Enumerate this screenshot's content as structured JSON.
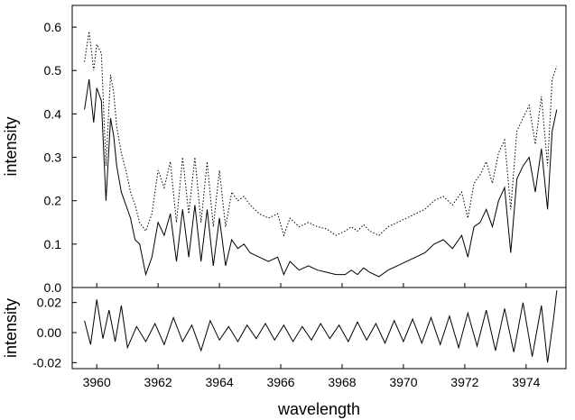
{
  "chart_data": [
    {
      "type": "line",
      "panel": "top",
      "xlabel": "",
      "ylabel": "intensity",
      "xlim": [
        3959.2,
        3975.3
      ],
      "ylim": [
        0.0,
        0.65
      ],
      "y_ticks": [
        "0.0",
        "0.1",
        "0.2",
        "0.3",
        "0.4",
        "0.5",
        "0.6"
      ],
      "x_ticks": [
        "3960",
        "3962",
        "3964",
        "3966",
        "3968",
        "3970",
        "3972",
        "3974"
      ],
      "grid": false,
      "legend": "none",
      "series": [
        {
          "style": "solid",
          "color": "#000000",
          "x": [
            3959.6,
            3959.75,
            3959.9,
            3960.0,
            3960.15,
            3960.3,
            3960.45,
            3960.55,
            3960.65,
            3960.8,
            3960.95,
            3961.1,
            3961.25,
            3961.4,
            3961.6,
            3961.8,
            3962.0,
            3962.2,
            3962.4,
            3962.6,
            3962.8,
            3963.0,
            3963.2,
            3963.4,
            3963.6,
            3963.8,
            3964.0,
            3964.2,
            3964.4,
            3964.6,
            3964.8,
            3965.0,
            3965.3,
            3965.6,
            3965.9,
            3966.1,
            3966.3,
            3966.6,
            3966.9,
            3967.2,
            3967.5,
            3967.8,
            3968.1,
            3968.3,
            3968.5,
            3968.7,
            3968.9,
            3969.2,
            3969.5,
            3969.8,
            3970.1,
            3970.4,
            3970.7,
            3971.0,
            3971.3,
            3971.6,
            3971.9,
            3972.1,
            3972.3,
            3972.5,
            3972.7,
            3972.9,
            3973.1,
            3973.3,
            3973.5,
            3973.7,
            3973.9,
            3974.1,
            3974.3,
            3974.5,
            3974.7,
            3974.85,
            3975.0
          ],
          "values": [
            0.41,
            0.48,
            0.38,
            0.46,
            0.43,
            0.2,
            0.39,
            0.35,
            0.28,
            0.22,
            0.19,
            0.16,
            0.11,
            0.1,
            0.03,
            0.07,
            0.15,
            0.12,
            0.17,
            0.06,
            0.18,
            0.07,
            0.19,
            0.06,
            0.18,
            0.05,
            0.16,
            0.05,
            0.11,
            0.09,
            0.1,
            0.08,
            0.07,
            0.06,
            0.07,
            0.03,
            0.06,
            0.04,
            0.05,
            0.04,
            0.035,
            0.03,
            0.03,
            0.04,
            0.03,
            0.045,
            0.035,
            0.025,
            0.04,
            0.05,
            0.06,
            0.07,
            0.08,
            0.1,
            0.11,
            0.09,
            0.12,
            0.07,
            0.14,
            0.15,
            0.18,
            0.14,
            0.2,
            0.23,
            0.08,
            0.25,
            0.28,
            0.3,
            0.22,
            0.32,
            0.18,
            0.36,
            0.41
          ]
        },
        {
          "style": "dotted",
          "color": "#000000",
          "x": [
            3959.6,
            3959.75,
            3959.9,
            3960.0,
            3960.15,
            3960.3,
            3960.45,
            3960.55,
            3960.65,
            3960.8,
            3960.95,
            3961.1,
            3961.25,
            3961.4,
            3961.6,
            3961.8,
            3962.0,
            3962.2,
            3962.4,
            3962.6,
            3962.8,
            3963.0,
            3963.2,
            3963.4,
            3963.6,
            3963.8,
            3964.0,
            3964.2,
            3964.4,
            3964.6,
            3964.8,
            3965.0,
            3965.3,
            3965.6,
            3965.9,
            3966.1,
            3966.3,
            3966.6,
            3966.9,
            3967.2,
            3967.5,
            3967.8,
            3968.1,
            3968.3,
            3968.5,
            3968.7,
            3968.9,
            3969.2,
            3969.5,
            3969.8,
            3970.1,
            3970.4,
            3970.7,
            3971.0,
            3971.3,
            3971.6,
            3971.9,
            3972.1,
            3972.3,
            3972.5,
            3972.7,
            3972.9,
            3973.1,
            3973.3,
            3973.5,
            3973.7,
            3973.9,
            3974.1,
            3974.3,
            3974.5,
            3974.7,
            3974.85,
            3975.0
          ],
          "values": [
            0.52,
            0.59,
            0.5,
            0.56,
            0.54,
            0.28,
            0.49,
            0.45,
            0.37,
            0.31,
            0.27,
            0.22,
            0.19,
            0.15,
            0.13,
            0.17,
            0.27,
            0.23,
            0.29,
            0.15,
            0.3,
            0.17,
            0.3,
            0.15,
            0.29,
            0.14,
            0.27,
            0.14,
            0.22,
            0.2,
            0.21,
            0.19,
            0.17,
            0.16,
            0.17,
            0.12,
            0.16,
            0.14,
            0.15,
            0.14,
            0.135,
            0.12,
            0.13,
            0.14,
            0.13,
            0.145,
            0.13,
            0.12,
            0.14,
            0.15,
            0.16,
            0.17,
            0.18,
            0.2,
            0.21,
            0.19,
            0.22,
            0.16,
            0.24,
            0.26,
            0.29,
            0.24,
            0.31,
            0.34,
            0.18,
            0.36,
            0.39,
            0.42,
            0.33,
            0.44,
            0.28,
            0.48,
            0.51
          ]
        }
      ]
    },
    {
      "type": "line",
      "panel": "bottom",
      "xlabel": "wavelength",
      "ylabel": "intensity",
      "xlim": [
        3959.2,
        3975.3
      ],
      "ylim": [
        -0.024,
        0.03
      ],
      "y_ticks": [
        "-0.02",
        "0.00",
        "0.02"
      ],
      "x_ticks": [
        "3960",
        "3962",
        "3964",
        "3966",
        "3968",
        "3970",
        "3972",
        "3974"
      ],
      "grid": false,
      "legend": "none",
      "series": [
        {
          "style": "solid",
          "color": "#000000",
          "x": [
            3959.6,
            3959.8,
            3960.0,
            3960.2,
            3960.4,
            3960.6,
            3960.8,
            3961.0,
            3961.3,
            3961.6,
            3961.9,
            3962.2,
            3962.5,
            3962.8,
            3963.1,
            3963.4,
            3963.7,
            3964.0,
            3964.3,
            3964.6,
            3964.9,
            3965.2,
            3965.5,
            3965.8,
            3966.1,
            3966.4,
            3966.7,
            3967.0,
            3967.3,
            3967.6,
            3967.9,
            3968.2,
            3968.5,
            3968.8,
            3969.1,
            3969.4,
            3969.7,
            3970.0,
            3970.3,
            3970.6,
            3970.9,
            3971.2,
            3971.5,
            3971.8,
            3972.1,
            3972.4,
            3972.7,
            3973.0,
            3973.3,
            3973.6,
            3973.9,
            3974.2,
            3974.5,
            3974.7,
            3974.9,
            3975.0
          ],
          "values": [
            0.008,
            -0.008,
            0.022,
            -0.004,
            0.015,
            -0.006,
            0.018,
            -0.01,
            0.004,
            -0.006,
            0.006,
            -0.008,
            0.01,
            -0.006,
            0.005,
            -0.012,
            0.008,
            -0.005,
            0.004,
            -0.006,
            0.005,
            -0.004,
            0.006,
            -0.005,
            0.005,
            -0.006,
            0.004,
            -0.005,
            0.006,
            -0.004,
            0.005,
            -0.006,
            0.007,
            -0.005,
            0.006,
            -0.007,
            0.008,
            -0.006,
            0.009,
            -0.007,
            0.01,
            -0.008,
            0.011,
            -0.01,
            0.013,
            -0.009,
            0.015,
            -0.012,
            0.016,
            -0.013,
            0.02,
            -0.016,
            0.018,
            -0.02,
            0.01,
            0.028
          ]
        }
      ]
    }
  ]
}
